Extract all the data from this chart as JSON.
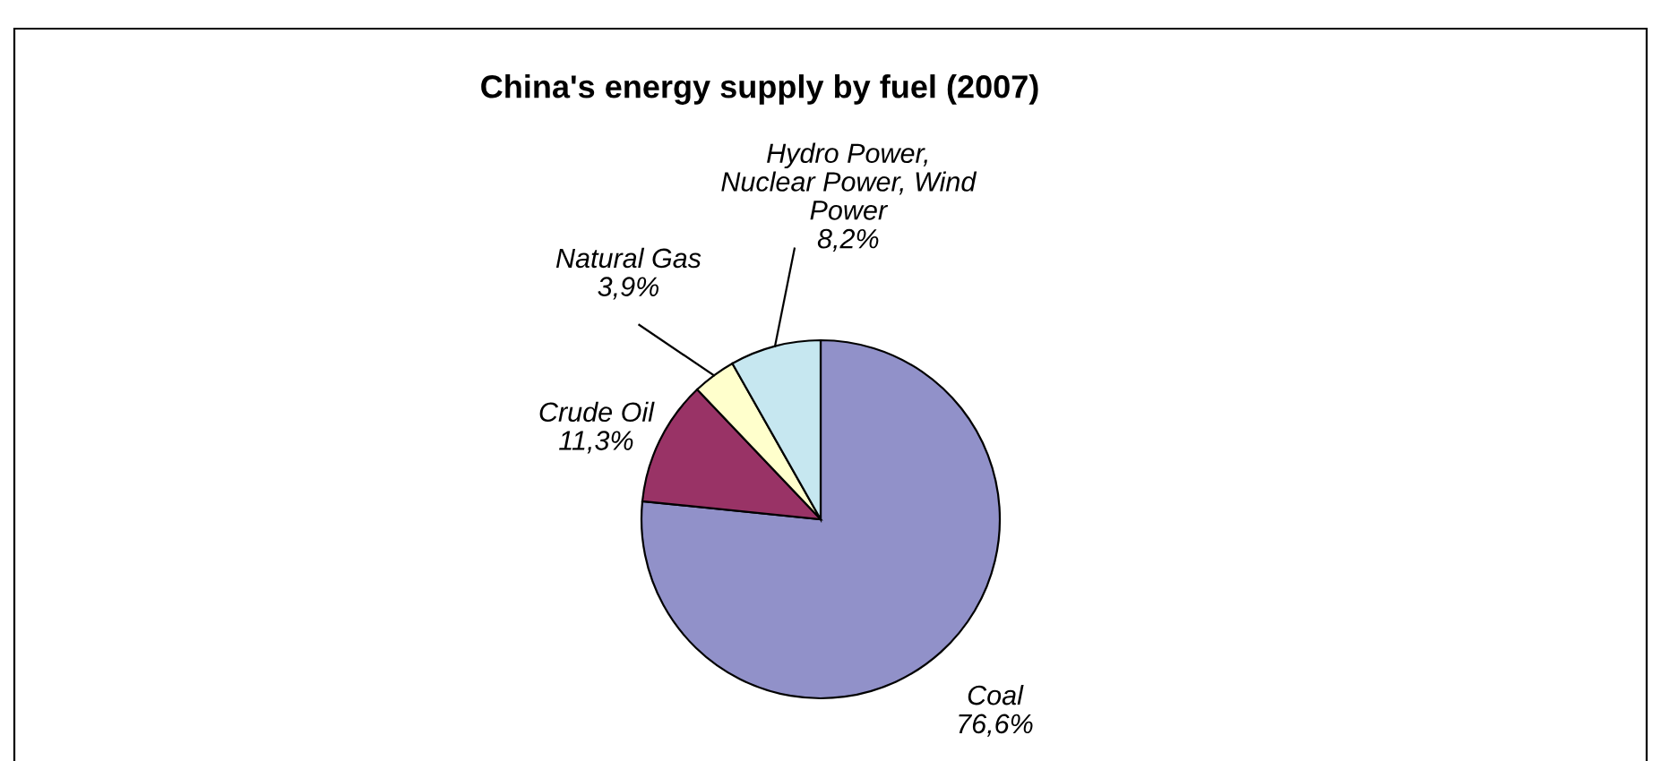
{
  "chart_data": {
    "type": "pie",
    "title": "China's energy supply by fuel (2007)",
    "categories": [
      "Coal",
      "Crude Oil",
      "Natural Gas",
      "Hydro Power, Nuclear Power, Wind Power"
    ],
    "values": [
      76.6,
      11.3,
      3.9,
      8.2
    ],
    "colors": [
      "#9191c9",
      "#993366",
      "#ffffcc",
      "#c6e7f0"
    ],
    "value_labels": [
      "76,6%",
      "11,3%",
      "3,9%",
      "8,2%"
    ]
  }
}
